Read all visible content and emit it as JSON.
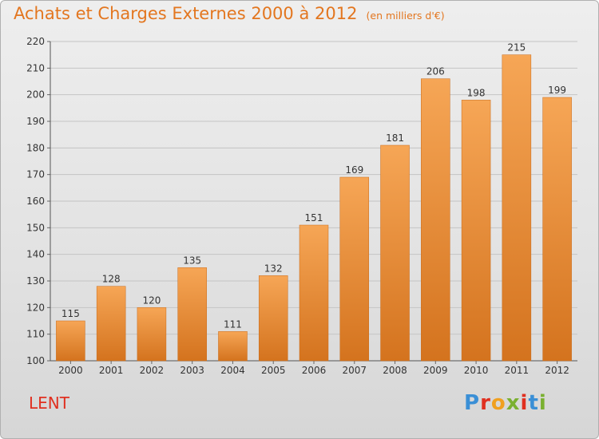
{
  "header": {
    "title": "Achats et Charges Externes 2000 à 2012",
    "unit": "(en milliers d'€)"
  },
  "footer": {
    "commune": "LENT",
    "logo_text": "Proxiti"
  },
  "colors": {
    "bar_light": "#f6a656",
    "bar_dark": "#d4731e",
    "title": "#e3761f",
    "commune": "#e03020",
    "logo_letters": [
      "#3a8fd6",
      "#e03020",
      "#f0a020",
      "#7ab030",
      "#e03020",
      "#3a8fd6",
      "#7ab030"
    ]
  },
  "chart_data": {
    "type": "bar",
    "title": "Achats et Charges Externes 2000 à 2012",
    "subtitle": "(en milliers d'€)",
    "xlabel": "",
    "ylabel": "",
    "categories": [
      "2000",
      "2001",
      "2002",
      "2003",
      "2004",
      "2005",
      "2006",
      "2007",
      "2008",
      "2009",
      "2010",
      "2011",
      "2012"
    ],
    "values": [
      115,
      128,
      120,
      135,
      111,
      132,
      151,
      169,
      181,
      206,
      198,
      215,
      199
    ],
    "ylim": [
      100,
      220
    ],
    "yticks": [
      100,
      110,
      120,
      130,
      140,
      150,
      160,
      170,
      180,
      190,
      200,
      210,
      220
    ],
    "grid": true,
    "legend": "none"
  }
}
